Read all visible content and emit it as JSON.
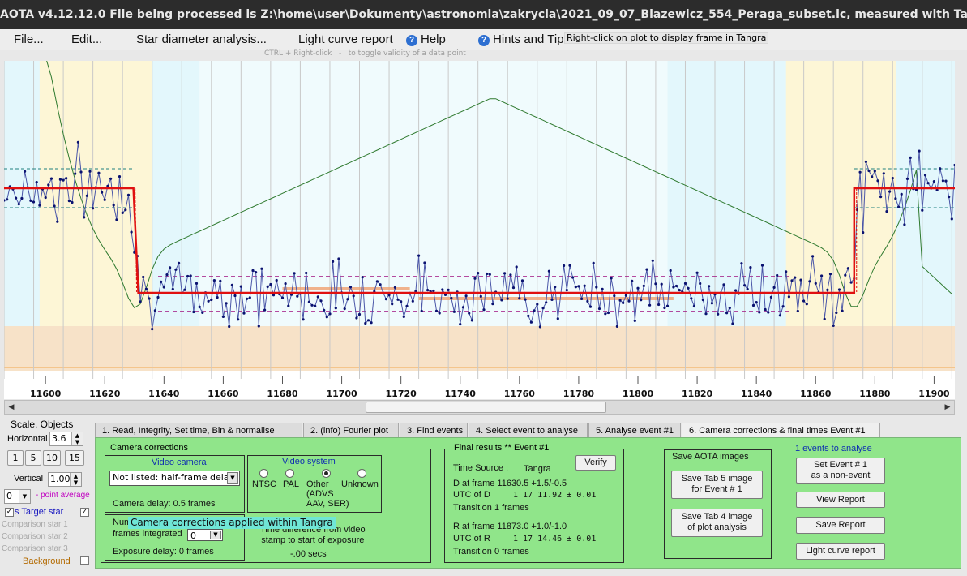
{
  "title": "AOTA v4.12.12.0    File being processed is Z:\\home\\user\\Dokumenty\\astronomia\\zakrycia\\2021_09_07_Blazewicz_554_Peraga_subset.lc, measured with Tangra",
  "menu": {
    "file": "File...",
    "edit": "Edit...",
    "star_diameter": "Star diameter analysis...",
    "light_curve_report": "Light curve report",
    "help": "Help",
    "hints": "Hints and Tip"
  },
  "tips": {
    "right_click": "Right-click on plot to display frame in Tangra",
    "ctrl_right_click": "CTRL + Right-click   -   to toggle validity of a data point"
  },
  "chart_data": {
    "type": "line",
    "x_ticks": [
      11600,
      11620,
      11640,
      11660,
      11680,
      11700,
      11720,
      11740,
      11760,
      11780,
      11800,
      11820,
      11840,
      11860,
      11880,
      11900
    ],
    "xlim": [
      11586,
      11907
    ],
    "event_model": {
      "baseline_level": 1.0,
      "event_level": 0.0,
      "D_frame": 11630.5,
      "R_frame": 11873.0
    },
    "series_seed": 7,
    "colors": {
      "data": "#4a56a8",
      "points": "#0a1270",
      "fit": "#e01010",
      "correlation": "#2f7a2f",
      "band_cyan": "#e3f7fc",
      "band_yellow": "#fdf6d6",
      "lower_band": "#f7e2c8"
    }
  },
  "scale": {
    "title": "Scale, Objects",
    "horizontal_label": "Horizontal",
    "horizontal_value": "3.6",
    "buttons": [
      "1",
      "5",
      "10",
      "15"
    ],
    "vertical_label": "Vertical",
    "vertical_value": "1.00",
    "point_avg_value": "0",
    "point_avg_label": "- point average"
  },
  "objects": {
    "target": "s  Target star",
    "comp1": "Comparison star 1",
    "comp2": "Comparison star 2",
    "comp3": "Comparison star 3",
    "background": "Background"
  },
  "tabs": [
    "1.  Read, Integrity, Set time, Bin & normalise",
    "2. (info)  Fourier plot",
    "3. Find events",
    "4. Select event to analyse",
    "5. Analyse event #1",
    "6. Camera corrections & final times Event #1"
  ],
  "camera": {
    "group_title": "Camera corrections",
    "video_camera_title": "Video camera",
    "camera_select": "Not listed: half-frame delay",
    "camera_delay": "Camera delay: 0.5 frames",
    "video_system_title": "Video system",
    "systems": [
      "NTSC",
      "PAL",
      "Other",
      "Unknown"
    ],
    "other_sub": "(ADVS\nAAV, SER)",
    "frames_integrated_label": "Num\nframes integrated",
    "frames_integrated_value": "0",
    "exposure_delay": "Exposure delay:  0 frames",
    "time_diff_label": "Time difference from video\nstamp to start of exposure",
    "time_diff_value": "-.00 secs",
    "tooltip": "Camera corrections applied within Tangra"
  },
  "final": {
    "group_title": "Final results  ** Event #1",
    "time_source_label": "Time Source :",
    "time_source_value": "Tangra",
    "verify": "Verify",
    "d_line": "D    at frame 11630.5  +1.5/-0.5",
    "utc_d_label": "UTC of D",
    "utc_d_value": "1  17  11.92  ±  0.01",
    "transition_d": "Transition  1 frames",
    "r_line": "R    at frame 11873.0  +1.0/-1.0",
    "utc_r_label": "UTC of R",
    "utc_r_value": "1  17  14.46  ±  0.01",
    "transition_r": "Transition  0 frames"
  },
  "save_images": {
    "group_title": "Save AOTA images",
    "tab5": "Save Tab 5 image\nfor Event # 1",
    "tab4": "Save Tab 4 image\nof plot analysis"
  },
  "report": {
    "events_to_analyse": "1  events to analyse",
    "non_event": "Set Event # 1\nas a non-event",
    "view_report": "View Report",
    "save_report": "Save Report",
    "light_curve_report": "Light curve report"
  }
}
